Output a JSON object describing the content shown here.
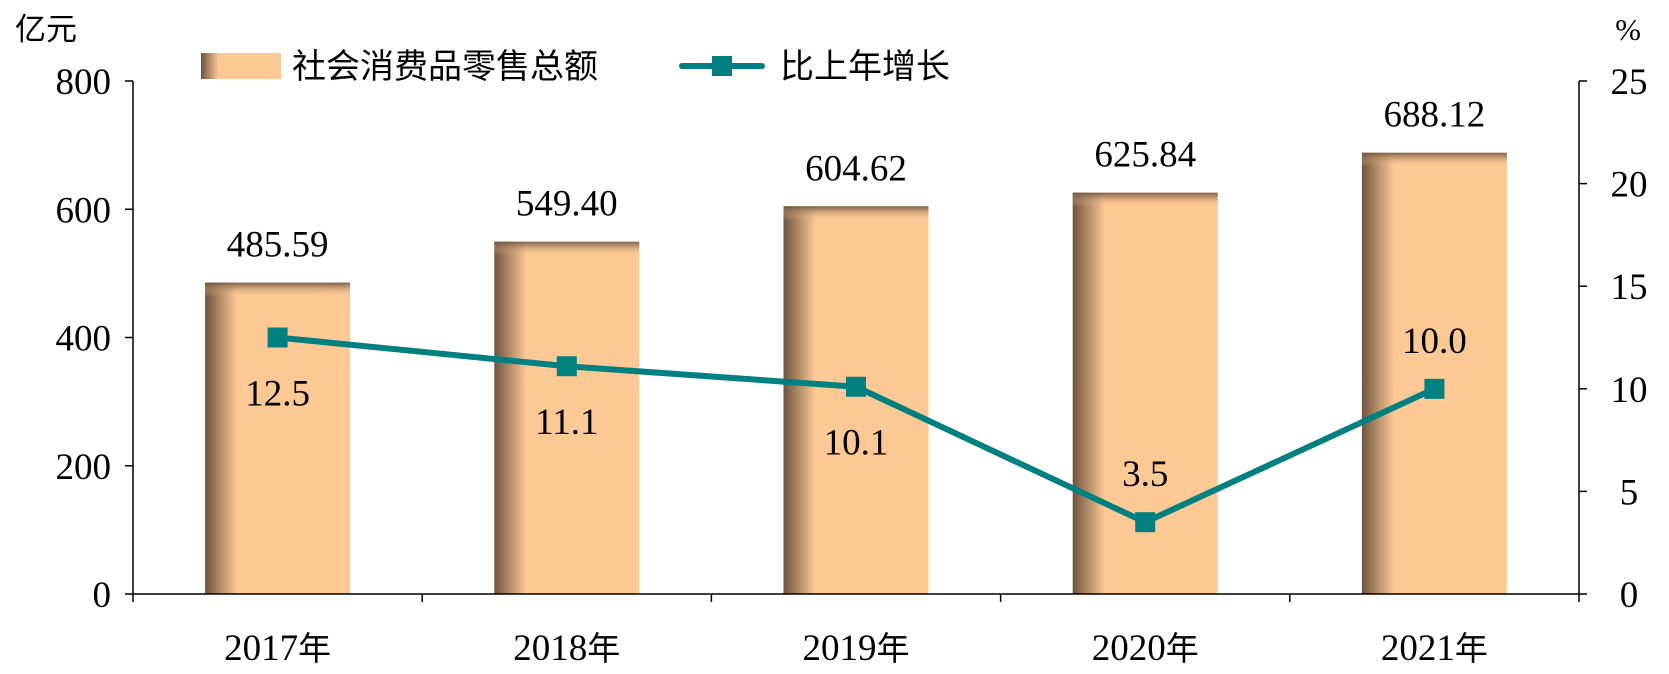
{
  "chart_data": {
    "type": "bar",
    "y_left_label": "亿元",
    "y_right_label": "%",
    "y_left_lim": [
      0,
      800
    ],
    "y_left_ticks": [
      0,
      200,
      400,
      600,
      800
    ],
    "y_right_lim": [
      0,
      25
    ],
    "y_right_ticks": [
      0,
      5,
      10,
      15,
      20,
      25
    ],
    "categories": [
      "2017年",
      "2018年",
      "2019年",
      "2020年",
      "2021年"
    ],
    "series": [
      {
        "name": "社会消费品零售总额",
        "type": "bar",
        "axis": "left",
        "values": [
          485.59,
          549.4,
          604.62,
          625.84,
          688.12
        ],
        "labels": [
          "485.59",
          "549.40",
          "604.62",
          "625.84",
          "688.12"
        ],
        "color": "#FCC893",
        "shade_color": "#7A5F48"
      },
      {
        "name": "比上年增长",
        "type": "line",
        "axis": "right",
        "values": [
          12.5,
          11.1,
          10.1,
          3.5,
          10.0
        ],
        "labels": [
          "12.5",
          "11.1",
          "10.1",
          "3.5",
          "10.0"
        ],
        "color": "#008080"
      }
    ],
    "legend_position": "top",
    "grid": false
  }
}
